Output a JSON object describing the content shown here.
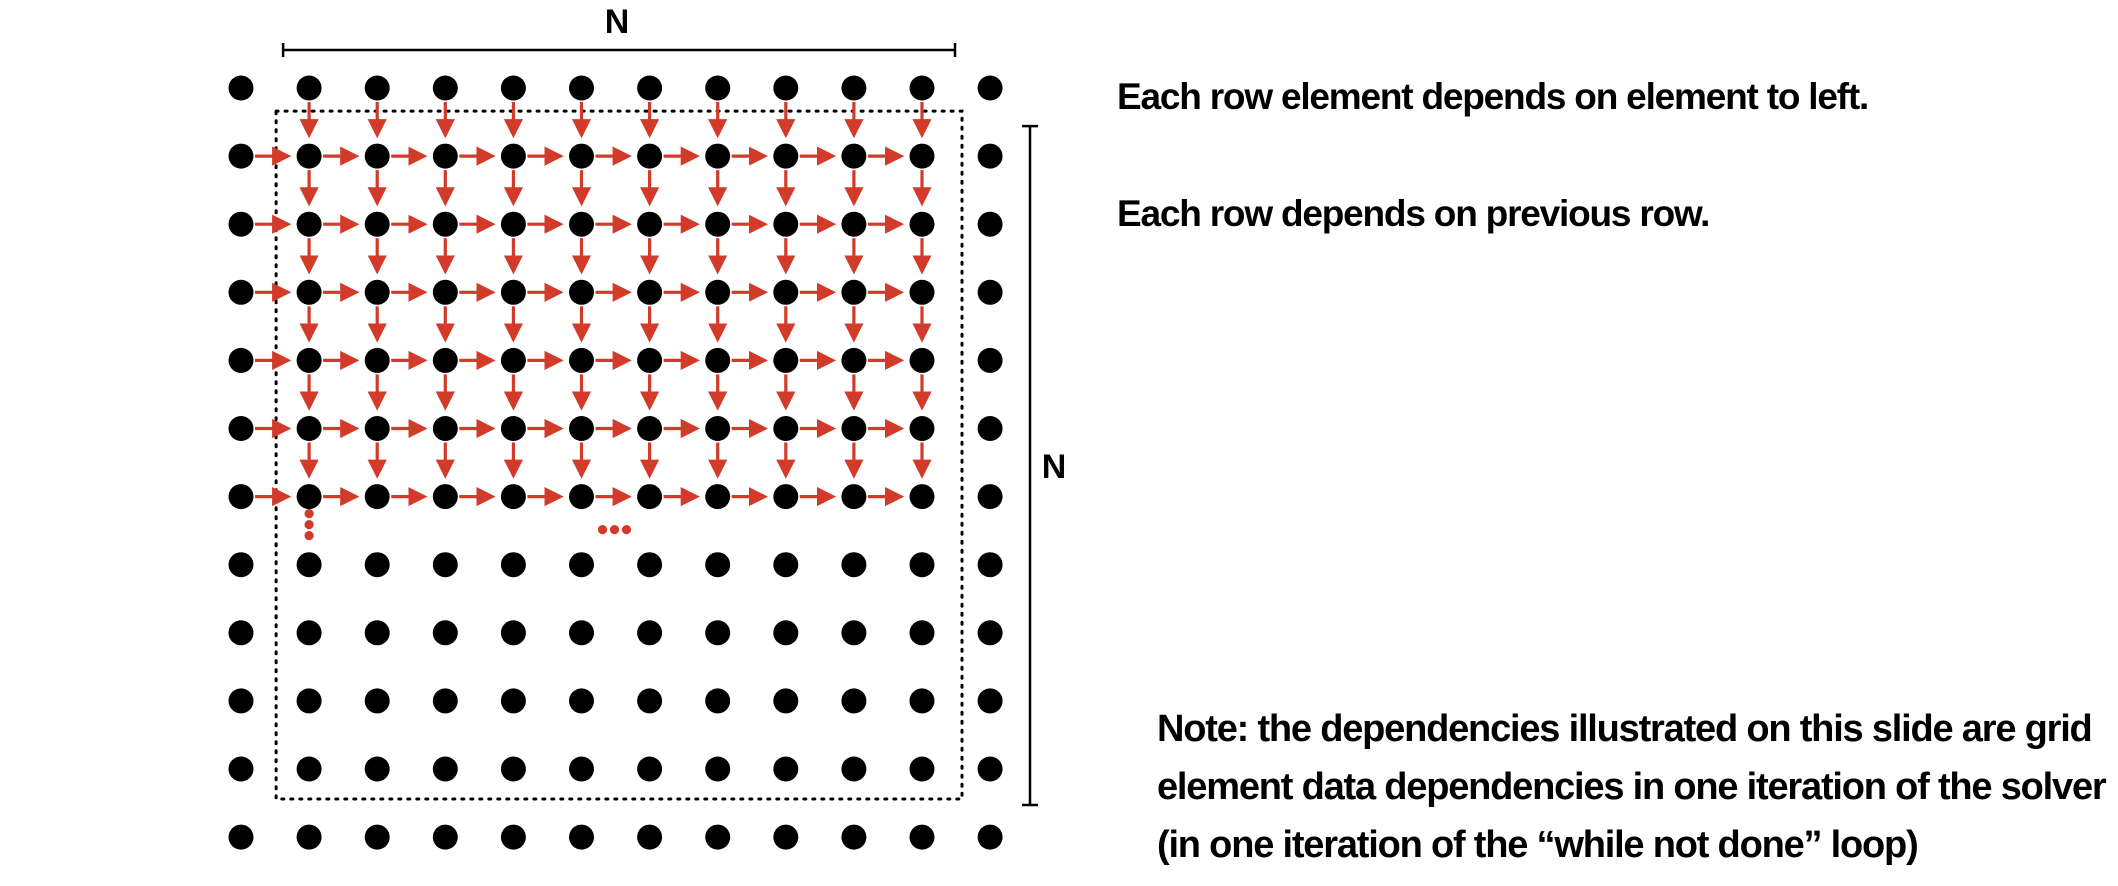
{
  "diagram": {
    "grid": {
      "rows": 12,
      "cols": 12
    },
    "dependency_region": {
      "first_row": 1,
      "last_row": 6,
      "first_col": 1,
      "last_col": 10
    },
    "colors": {
      "dot": "#000000",
      "arrow": "#d23a2a",
      "boundary": "#000000"
    },
    "labels": {
      "top_dimension": "N",
      "right_dimension": "N"
    }
  },
  "text": {
    "statement_1": "Each row element depends on element to left.",
    "statement_2": "Each row depends on previous row.",
    "note_lines": [
      "Note: the dependencies illustrated on this slide are grid",
      "element data dependencies in one iteration of the solver",
      "(in one iteration of the “while not done” loop)"
    ]
  }
}
